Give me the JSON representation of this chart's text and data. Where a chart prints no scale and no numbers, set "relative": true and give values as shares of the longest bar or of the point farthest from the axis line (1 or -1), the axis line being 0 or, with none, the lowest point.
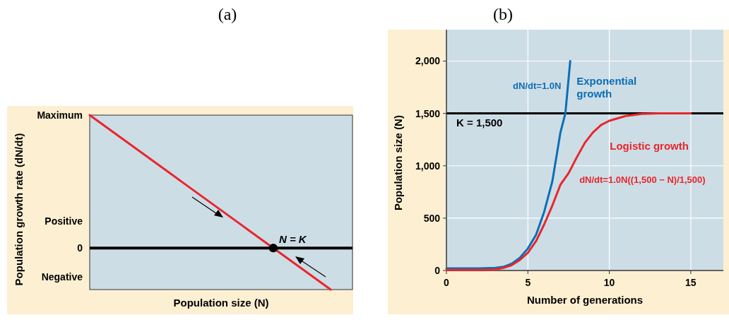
{
  "chart_data": [
    {
      "type": "line",
      "title": "(a)",
      "xlabel": "Population size (N)",
      "ylabel": "Population growth rate (dN/dt)",
      "relative": true,
      "legend": false,
      "grid": false,
      "categories": [
        null,
        null,
        null,
        null,
        null,
        null,
        null,
        null,
        null,
        null,
        null,
        null,
        null,
        null,
        null,
        null,
        null,
        null,
        null,
        null,
        null,
        null
      ],
      "series": [
        {
          "color": "#e8262c",
          "values": [
            1,
            0.9375,
            0.875,
            0.8125,
            0.75,
            0.6875,
            0.625,
            0.5625,
            0.5,
            0.4375,
            0.375,
            0.3125,
            0.25,
            0.1875,
            0.125,
            0.0625,
            0,
            -0.0625,
            -0.125,
            -0.1875,
            -0.25,
            -0.3125
          ]
        }
      ],
      "annotations": [
        "Maximum",
        "Positive",
        "0",
        "Negative",
        "N = K"
      ]
    },
    {
      "type": "line",
      "title": "(b)",
      "xlabel": "Number of generations",
      "ylabel": "Population size (N)",
      "legend": false,
      "grid": true,
      "xlim": [
        0,
        17
      ],
      "xticks": [
        0,
        5,
        10,
        15
      ],
      "ylim": [
        0,
        2300
      ],
      "yticks": [
        0,
        {
          "value": 500,
          "label": "500"
        },
        {
          "value": 1000,
          "label": "1,000"
        },
        {
          "value": 1500,
          "label": "1,500"
        },
        {
          "value": 2000,
          "label": "2,000"
        }
      ],
      "series": [
        {
          "name": "Exponential growth",
          "color": "#0b6fb5",
          "x": [
            0,
            1,
            2,
            3,
            3.5,
            4,
            4.5,
            5,
            5.5,
            6,
            6.5,
            7,
            7.3,
            7.6
          ],
          "values": [
            20,
            20,
            20,
            25,
            35,
            65,
            120,
            210,
            340,
            560,
            850,
            1320,
            1500,
            2000
          ]
        },
        {
          "name": "Logistic growth",
          "color": "#e8262c",
          "x": [
            0,
            1,
            2,
            2.5,
            3,
            3.5,
            4,
            4.5,
            5,
            5.5,
            6,
            6.5,
            7,
            7.5,
            8,
            8.5,
            9,
            9.5,
            10,
            11,
            12,
            13,
            15
          ],
          "values": [
            5,
            5,
            5,
            6,
            10,
            25,
            50,
            100,
            170,
            280,
            440,
            620,
            820,
            930,
            1080,
            1220,
            1320,
            1390,
            1430,
            1475,
            1495,
            1500,
            1500
          ]
        }
      ],
      "ref_lines": [
        {
          "axis": "y",
          "value": 1500,
          "label": "K = 1,500",
          "color": "#000000"
        }
      ],
      "annotations": [
        "dN/dt=1.0N",
        "dN/dt=1.0N((1,500 − N)/1,500)"
      ]
    }
  ]
}
